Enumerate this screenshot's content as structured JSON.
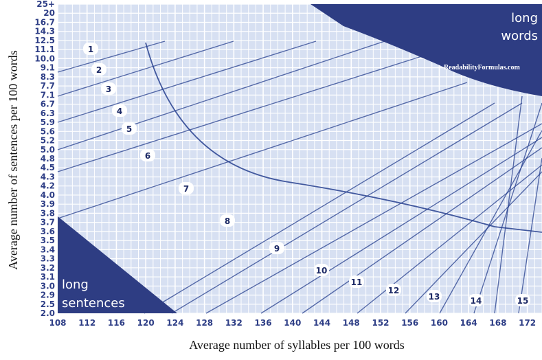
{
  "chart_data": {
    "type": "line",
    "title": "",
    "xlabel": "Average number of syllables per 100 words",
    "ylabel": "Average number of sentences per 100 words",
    "x_ticks": [
      "108",
      "112",
      "116",
      "120",
      "124",
      "128",
      "132",
      "136",
      "140",
      "144",
      "148",
      "152",
      "156",
      "160",
      "164",
      "168",
      "172"
    ],
    "y_ticks": [
      "2.0",
      "2.5",
      "2.9",
      "3.0",
      "3.1",
      "3.2",
      "3.3",
      "3.4",
      "3.5",
      "3.6",
      "3.7",
      "3.8",
      "3.9",
      "4.0",
      "4.2",
      "4.3",
      "4.5",
      "4.8",
      "5.0",
      "5.2",
      "5.6",
      "5.9",
      "6.3",
      "6.7",
      "7.1",
      "7.7",
      "8.3",
      "9.1",
      "10.0",
      "11.1",
      "12.5",
      "14.3",
      "16.7",
      "20",
      "25+"
    ],
    "xlim": [
      108,
      174
    ],
    "grade_labels": [
      "1",
      "2",
      "3",
      "4",
      "5",
      "6",
      "7",
      "8",
      "9",
      "10",
      "11",
      "12",
      "13",
      "14",
      "15"
    ],
    "regions": {
      "long_words": "long words",
      "long_sentences": "long sentences"
    },
    "watermark": "ReadabilityFormulas.com",
    "colors": {
      "background": "#d7e0f2",
      "grid": "#ffffff",
      "line": "#27408f",
      "region": "#2e3d83",
      "axis_text": "#2e3e86"
    },
    "grid": true,
    "legend": "none"
  }
}
